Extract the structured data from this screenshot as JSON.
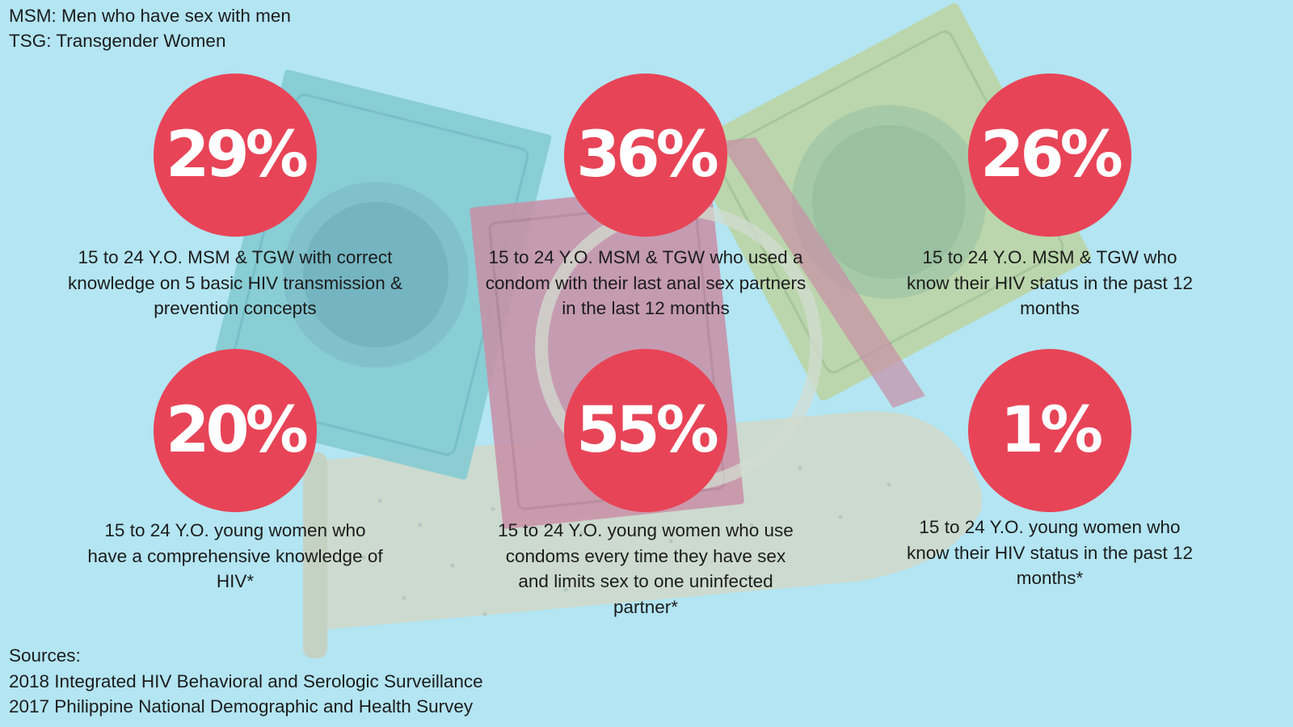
{
  "legend": {
    "msm": "MSM: Men who have sex with men",
    "tsg": "TSG: Transgender Women"
  },
  "stats": [
    {
      "value": "29%",
      "caption": "15 to 24 Y.O. MSM & TGW with correct knowledge on 5 basic HIV transmission & prevention concepts"
    },
    {
      "value": "36%",
      "caption": "15 to 24 Y.O. MSM & TGW who used a condom with their last anal sex partners in the last 12 months"
    },
    {
      "value": "26%",
      "caption": "15 to 24 Y.O. MSM & TGW who know their HIV status in the past 12 months"
    },
    {
      "value": "20%",
      "caption": "15 to 24 Y.O. young women who have a comprehensive knowledge of HIV*"
    },
    {
      "value": "55%",
      "caption": "15 to 24 Y.O. young women who use condoms every time they have sex and limits sex to one uninfected partner*"
    },
    {
      "value": "1%",
      "caption": "15 to 24 Y.O. young women who know their HIV status in the past 12 months*"
    }
  ],
  "sources": {
    "heading": "Sources:",
    "items": [
      "2018 Integrated HIV Behavioral and Serologic Surveillance",
      "2017 Philippine National Demographic and Health Survey"
    ]
  },
  "colors": {
    "background": "#b3e5f2",
    "circle": "#e84457",
    "wrapper_teal": "#86ccd3",
    "wrapper_pink": "#c98fa6",
    "wrapper_green": "#bcd5a5",
    "condom_tube": "#cfd9cc"
  }
}
